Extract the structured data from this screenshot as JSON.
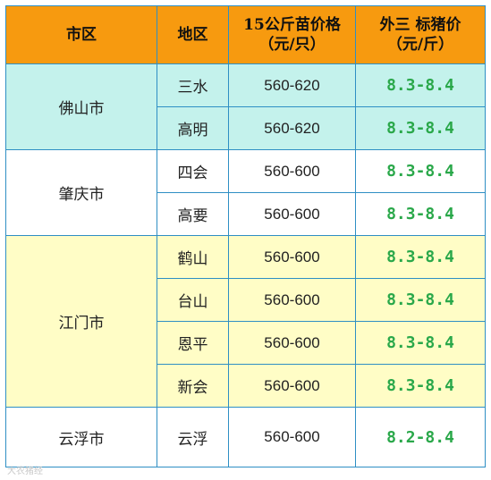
{
  "headers": {
    "city": "市区",
    "district": "地区",
    "piglet_line1": "15公斤苗价格",
    "piglet_line2": "（元/只）",
    "hog_line1": "外三 标猪价",
    "hog_line2": "（元/斤）"
  },
  "groups": [
    {
      "city": "佛山市",
      "rows": [
        {
          "district": "三水",
          "piglet": "560-620",
          "hog": "8.3-8.4"
        },
        {
          "district": "高明",
          "piglet": "560-620",
          "hog": "8.3-8.4"
        }
      ]
    },
    {
      "city": "肇庆市",
      "rows": [
        {
          "district": "四会",
          "piglet": "560-600",
          "hog": "8.3-8.4"
        },
        {
          "district": "高要",
          "piglet": "560-600",
          "hog": "8.3-8.4"
        }
      ]
    },
    {
      "city": "江门市",
      "rows": [
        {
          "district": "鹤山",
          "piglet": "560-600",
          "hog": "8.3-8.4"
        },
        {
          "district": "台山",
          "piglet": "560-600",
          "hog": "8.3-8.4"
        },
        {
          "district": "恩平",
          "piglet": "560-600",
          "hog": "8.3-8.4"
        },
        {
          "district": "新会",
          "piglet": "560-600",
          "hog": "8.3-8.4"
        }
      ]
    },
    {
      "city": "云浮市",
      "rows": [
        {
          "district": "云浮",
          "piglet": "560-600",
          "hog": "8.2-8.4"
        }
      ]
    }
  ],
  "watermark": "大农猪经"
}
